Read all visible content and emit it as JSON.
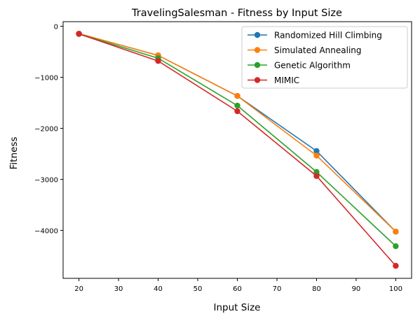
{
  "chart_data": {
    "type": "line",
    "title": "TravelingSalesman - Fitness by Input Size",
    "xlabel": "Input Size",
    "ylabel": "Fitness",
    "x": [
      20,
      40,
      60,
      80,
      100
    ],
    "xlim": [
      16,
      104
    ],
    "ylim": [
      -4940,
      90
    ],
    "xticks": [
      20,
      30,
      40,
      50,
      60,
      70,
      80,
      90,
      100
    ],
    "yticks": [
      0,
      -1000,
      -2000,
      -3000,
      -4000
    ],
    "ytick_labels": [
      "0",
      "−1000",
      "−2000",
      "−3000",
      "−4000"
    ],
    "grid": false,
    "legend_position": "top-right",
    "series": [
      {
        "name": "Randomized Hill Climbing",
        "color": "#1f77b4",
        "values": [
          -145,
          -570,
          -1365,
          -2445,
          -4025
        ]
      },
      {
        "name": "Simulated Annealing",
        "color": "#ff7f0e",
        "values": [
          -145,
          -570,
          -1365,
          -2535,
          -4025
        ]
      },
      {
        "name": "Genetic Algorithm",
        "color": "#2ca02c",
        "values": [
          -150,
          -625,
          -1555,
          -2855,
          -4310
        ]
      },
      {
        "name": "MIMIC",
        "color": "#d62728",
        "values": [
          -150,
          -680,
          -1665,
          -2935,
          -4695
        ]
      }
    ]
  }
}
